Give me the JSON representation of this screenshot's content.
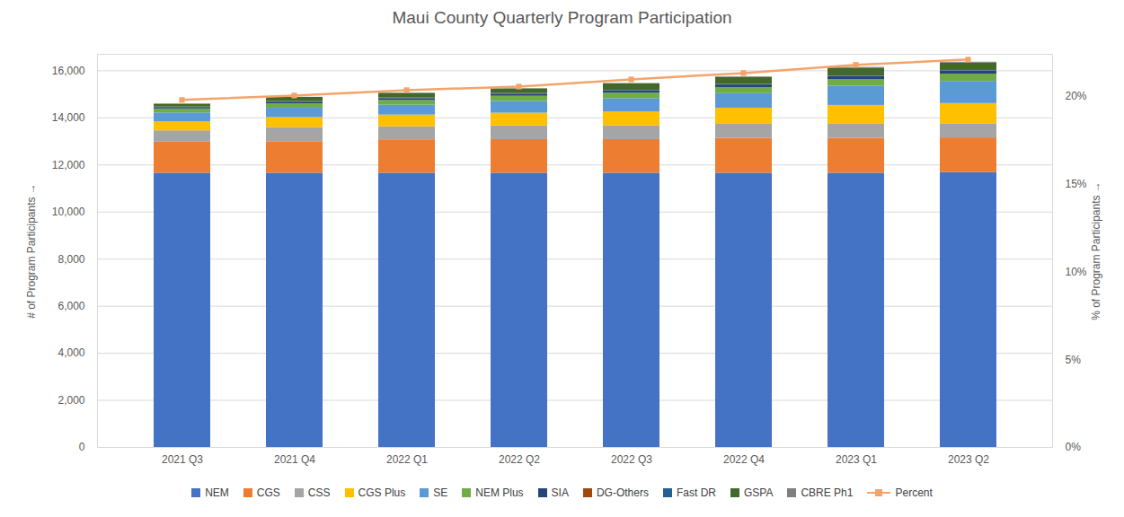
{
  "chart_data": {
    "type": "bar",
    "title": "Maui County Quarterly Program Participation",
    "ylabel": "# of Program Participants",
    "y2label": "% of Program Participants",
    "categories": [
      "2021 Q3",
      "2021 Q4",
      "2022 Q1",
      "2022 Q2",
      "2022 Q3",
      "2022 Q4",
      "2023 Q1",
      "2023 Q2"
    ],
    "stacked": true,
    "grid": true,
    "legend": "bottom",
    "ylim": [
      0,
      16700
    ],
    "yticks": [
      0,
      {
        "value": 2000,
        "label": "2,000"
      },
      {
        "value": 4000,
        "label": "4,000"
      },
      {
        "value": 6000,
        "label": "6,000"
      },
      {
        "value": 8000,
        "label": "8,000"
      },
      {
        "value": 10000,
        "label": "10,000"
      },
      {
        "value": 12000,
        "label": "12,000"
      },
      {
        "value": 14000,
        "label": "14,000"
      },
      {
        "value": 16000,
        "label": "16,000"
      }
    ],
    "y2lim": [
      0,
      22.4
    ],
    "y2ticks": [
      {
        "value": 0,
        "label": "0%"
      },
      {
        "value": 5,
        "label": "5%"
      },
      {
        "value": 10,
        "label": "10%"
      },
      {
        "value": 15,
        "label": "15%"
      },
      {
        "value": 20,
        "label": "20%"
      }
    ],
    "series": [
      {
        "name": "NEM",
        "color": "#4472c4",
        "values": [
          11650,
          11650,
          11650,
          11650,
          11650,
          11650,
          11650,
          11680
        ]
      },
      {
        "name": "CGS",
        "color": "#ed7d31",
        "values": [
          1320,
          1340,
          1420,
          1430,
          1430,
          1480,
          1480,
          1470
        ]
      },
      {
        "name": "CSS",
        "color": "#a5a5a5",
        "values": [
          480,
          600,
          550,
          580,
          580,
          600,
          600,
          600
        ]
      },
      {
        "name": "CGS Plus",
        "color": "#ffc000",
        "values": [
          380,
          420,
          500,
          540,
          600,
          680,
          800,
          860
        ]
      },
      {
        "name": "SE",
        "color": "#5b9bd5",
        "values": [
          380,
          400,
          420,
          500,
          560,
          620,
          820,
          940
        ]
      },
      {
        "name": "NEM Plus",
        "color": "#70ad47",
        "values": [
          170,
          190,
          200,
          220,
          230,
          260,
          280,
          310
        ]
      },
      {
        "name": "SIA",
        "color": "#264478",
        "values": [
          60,
          70,
          80,
          90,
          100,
          110,
          120,
          130
        ]
      },
      {
        "name": "DG-Others",
        "color": "#9e480e",
        "values": [
          5,
          5,
          5,
          5,
          5,
          5,
          5,
          5
        ]
      },
      {
        "name": "Fast DR",
        "color": "#255e91",
        "values": [
          20,
          20,
          20,
          20,
          20,
          20,
          20,
          20
        ]
      },
      {
        "name": "GSPA",
        "color": "#43682b",
        "values": [
          120,
          180,
          200,
          200,
          280,
          300,
          340,
          310
        ]
      },
      {
        "name": "CBRE Ph1",
        "color": "#7f7f7f",
        "values": [
          0,
          0,
          0,
          0,
          0,
          20,
          30,
          40
        ]
      },
      {
        "name": "Percent",
        "color": "#f4a46a",
        "type": "line",
        "axis": "y2",
        "marker": "square",
        "line_style": "solid",
        "values": [
          19.8,
          20.05,
          20.36,
          20.56,
          20.97,
          21.33,
          21.8,
          22.1
        ]
      }
    ]
  }
}
